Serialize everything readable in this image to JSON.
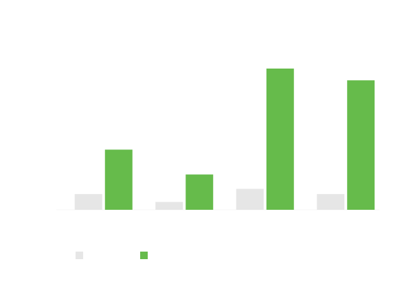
{
  "chart_data": {
    "type": "bar",
    "categories": [
      "",
      "",
      "",
      ""
    ],
    "series": [
      {
        "name": "",
        "color": "#e6e6e6",
        "values": [
          0.6,
          0.3,
          0.8,
          0.6
        ]
      },
      {
        "name": "",
        "color": "#66bb4b",
        "values": [
          2.3,
          1.35,
          5.4,
          4.95
        ]
      }
    ],
    "title": "",
    "xlabel": "",
    "ylabel": "",
    "ylim": [
      0,
      6
    ],
    "grid": false,
    "legend": "bottom-left"
  }
}
